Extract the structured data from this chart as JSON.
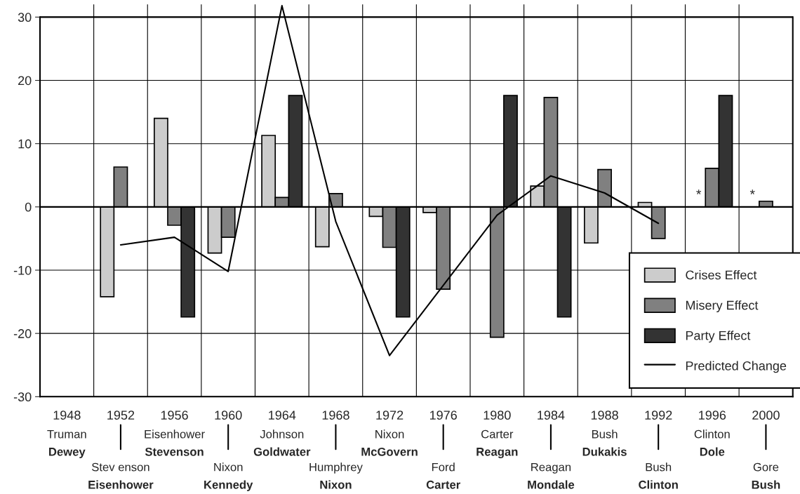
{
  "chart_data": {
    "type": "bar",
    "categories": [
      "1948",
      "1952",
      "1956",
      "1960",
      "1964",
      "1968",
      "1972",
      "1976",
      "1980",
      "1984",
      "1988",
      "1992",
      "1996",
      "2000"
    ],
    "series": [
      {
        "name": "Crises Effect",
        "color": "#cccccc",
        "values": [
          null,
          -14.2,
          14.0,
          -7.3,
          11.3,
          -6.3,
          -1.5,
          -0.9,
          null,
          3.3,
          -5.7,
          0.7,
          null,
          null
        ]
      },
      {
        "name": "Misery Effect",
        "color": "#808080",
        "values": [
          null,
          6.3,
          -2.9,
          -4.8,
          1.5,
          2.1,
          -6.4,
          -13.0,
          -20.6,
          17.3,
          5.9,
          -5.0,
          6.1,
          0.9
        ]
      },
      {
        "name": "Party Effect",
        "color": "#333333",
        "values": [
          null,
          null,
          -17.4,
          null,
          17.6,
          null,
          -17.4,
          null,
          17.6,
          -17.4,
          null,
          null,
          17.6,
          null
        ]
      },
      {
        "name": "Predicted Change",
        "type": "line",
        "color": "#000000",
        "values": [
          null,
          -6.0,
          -4.8,
          -10.2,
          31.8,
          -2.3,
          -23.5,
          null,
          -1.3,
          4.9,
          2.2,
          -2.6,
          null,
          null
        ]
      }
    ],
    "ylim": [
      -30,
      32
    ],
    "yticks": [
      -30,
      -20,
      -10,
      0,
      10,
      20,
      30
    ],
    "grid": true,
    "legend": "bottom right",
    "annotations": [
      "Truman",
      "Dewey",
      "Stev enson",
      "Eisenhower",
      "Eisenhower",
      "Stevenson",
      "Nixon",
      "Kennedy",
      "Johnson",
      "Goldwater",
      "Humphrey",
      "Nixon",
      "Nixon",
      "McGovern",
      "Ford",
      "Carter",
      "Carter",
      "Reagan",
      "Reagan",
      "Mondale",
      "Bush",
      "Dukakis",
      "Bush",
      "Clinton",
      "Clinton",
      "Dole",
      "Gore",
      "Bush",
      {
        "text": "*",
        "x": "1996",
        "y": 0
      },
      {
        "text": "*",
        "x": "2000",
        "y": 0
      }
    ]
  }
}
